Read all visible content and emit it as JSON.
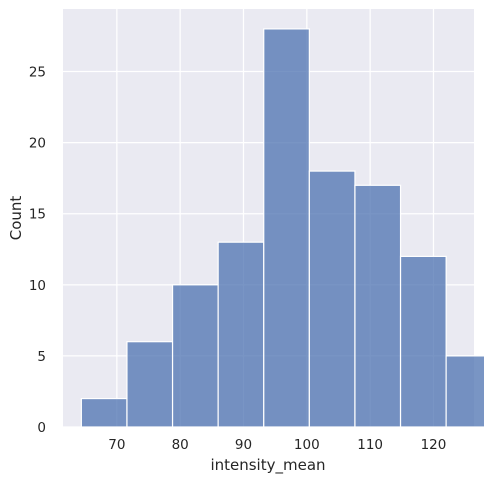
{
  "chart_data": {
    "type": "bar",
    "xlabel": "intensity_mean",
    "ylabel": "Count",
    "bins": [
      {
        "start": 64.4,
        "end": 71.6,
        "count": 2
      },
      {
        "start": 71.6,
        "end": 78.8,
        "count": 6
      },
      {
        "start": 78.8,
        "end": 86.0,
        "count": 10
      },
      {
        "start": 86.0,
        "end": 93.2,
        "count": 13
      },
      {
        "start": 93.2,
        "end": 100.4,
        "count": 28
      },
      {
        "start": 100.4,
        "end": 107.6,
        "count": 18
      },
      {
        "start": 107.6,
        "end": 114.8,
        "count": 17
      },
      {
        "start": 114.8,
        "end": 122.0,
        "count": 12
      },
      {
        "start": 122.0,
        "end": 129.2,
        "count": 5
      }
    ],
    "x_ticks": [
      "70",
      "80",
      "90",
      "100",
      "110",
      "120"
    ],
    "y_ticks": [
      "0",
      "5",
      "10",
      "15",
      "20",
      "25"
    ],
    "xlim": [
      61.5,
      126.4
    ],
    "ylim": [
      0,
      29.4
    ],
    "grid": true,
    "colors": {
      "background": "#EAEAF2",
      "bar_fill": "#4C72B0",
      "bar_alpha": 0.75,
      "bar_edge": "#FFFFFF",
      "grid": "#FFFFFF"
    }
  }
}
